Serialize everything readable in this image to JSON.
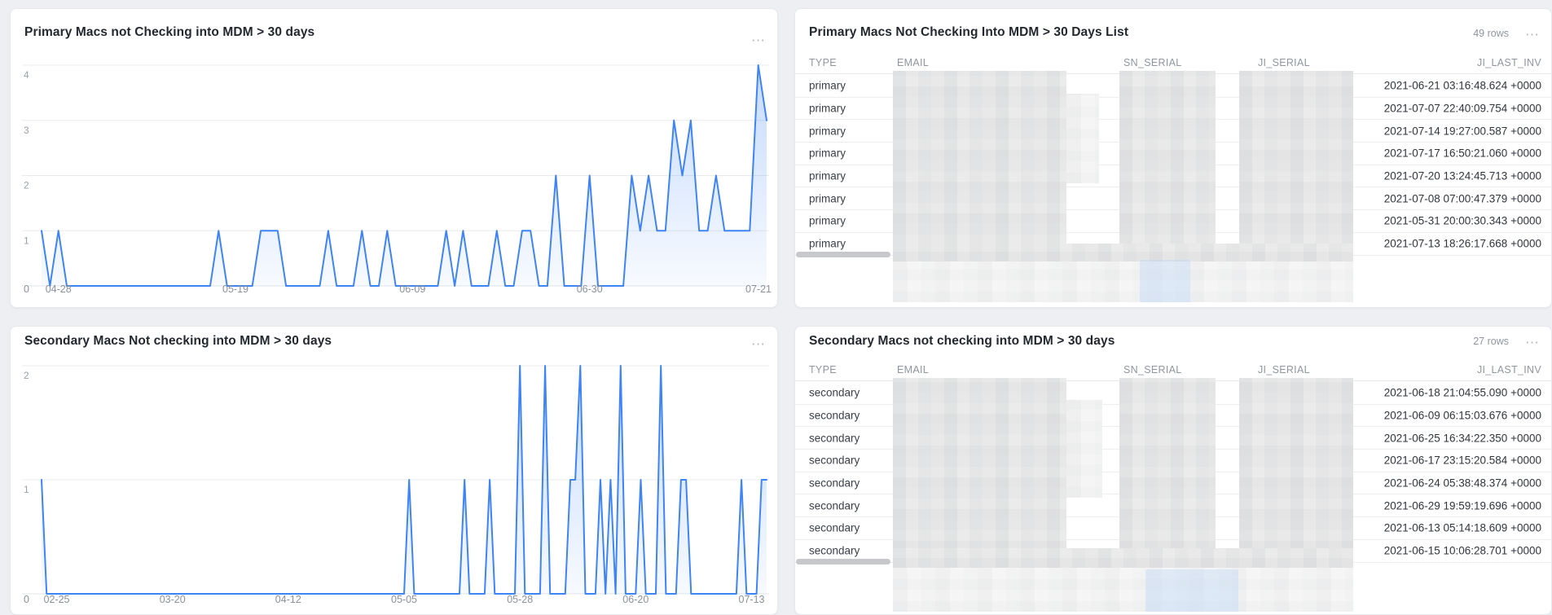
{
  "page": {
    "background": "#edeff2"
  },
  "cards": {
    "chart_primary": {
      "title": "Primary Macs not Checking into MDM > 30 days",
      "menu": "⋯"
    },
    "table_primary": {
      "title": "Primary Macs Not Checking Into MDM > 30 Days List",
      "rows_badge": "49 rows",
      "menu": "⋯"
    },
    "chart_secondary": {
      "title": "Secondary Macs Not checking into MDM > 30 days",
      "menu": "⋯"
    },
    "table_secondary": {
      "title": "Secondary Macs not checking into MDM > 30 days",
      "rows_badge": "27 rows",
      "menu": "⋯"
    }
  },
  "chart_data": [
    {
      "type": "area",
      "title": "Primary Macs not Checking into MDM > 30 days",
      "xlabel": "",
      "ylabel": "",
      "ylim": [
        0,
        4
      ],
      "yticks": [
        1,
        2,
        3,
        4
      ],
      "grid": true,
      "origin_label": "0",
      "line_color": "#3e84f4",
      "fill_color": "#3e84f4",
      "x_tick_labels": [
        {
          "label": "04-28",
          "index": 2
        },
        {
          "label": "05-19",
          "index": 23
        },
        {
          "label": "06-09",
          "index": 44
        },
        {
          "label": "06-30",
          "index": 65
        },
        {
          "label": "07-21",
          "index": 86
        }
      ],
      "values": [
        1,
        0,
        1,
        0,
        0,
        0,
        0,
        0,
        0,
        0,
        0,
        0,
        0,
        0,
        0,
        0,
        0,
        0,
        0,
        0,
        0,
        1,
        0,
        0,
        0,
        0,
        1,
        1,
        1,
        0,
        0,
        0,
        0,
        0,
        1,
        0,
        0,
        0,
        1,
        0,
        0,
        1,
        0,
        0,
        0,
        0,
        0,
        0,
        1,
        0,
        1,
        0,
        0,
        0,
        1,
        0,
        0,
        1,
        1,
        0,
        0,
        2,
        0,
        0,
        0,
        2,
        0,
        0,
        0,
        0,
        2,
        1,
        2,
        1,
        1,
        3,
        2,
        3,
        1,
        1,
        2,
        1,
        1,
        1,
        1,
        4,
        3
      ]
    },
    {
      "type": "area",
      "title": "Secondary Macs Not checking into MDM > 30 days",
      "xlabel": "",
      "ylabel": "",
      "ylim": [
        0,
        2
      ],
      "yticks": [
        1,
        2
      ],
      "grid": true,
      "origin_label": "0",
      "line_color": "#3e84f4",
      "fill_color": "#3e84f4",
      "x_tick_labels": [
        {
          "label": "02-25",
          "index": 3
        },
        {
          "label": "03-20",
          "index": 26
        },
        {
          "label": "04-12",
          "index": 49
        },
        {
          "label": "05-05",
          "index": 72
        },
        {
          "label": "05-28",
          "index": 95
        },
        {
          "label": "06-20",
          "index": 118
        },
        {
          "label": "07-13",
          "index": 141
        }
      ],
      "values": [
        1,
        0,
        0,
        0,
        0,
        0,
        0,
        0,
        0,
        0,
        0,
        0,
        0,
        0,
        0,
        0,
        0,
        0,
        0,
        0,
        0,
        0,
        0,
        0,
        0,
        0,
        0,
        0,
        0,
        0,
        0,
        0,
        0,
        0,
        0,
        0,
        0,
        0,
        0,
        0,
        0,
        0,
        0,
        0,
        0,
        0,
        0,
        0,
        0,
        0,
        0,
        0,
        0,
        0,
        0,
        0,
        0,
        0,
        0,
        0,
        0,
        0,
        0,
        0,
        0,
        0,
        0,
        0,
        0,
        0,
        0,
        0,
        0,
        1,
        0,
        0,
        0,
        0,
        0,
        0,
        0,
        0,
        0,
        0,
        1,
        0,
        0,
        0,
        0,
        1,
        0,
        0,
        0,
        0,
        0,
        2,
        0,
        0,
        0,
        0,
        2,
        0,
        0,
        0,
        0,
        1,
        1,
        2,
        0,
        0,
        0,
        1,
        0,
        1,
        0,
        2,
        0,
        0,
        0,
        1,
        0,
        0,
        0,
        2,
        0,
        0,
        0,
        1,
        1,
        0,
        0,
        0,
        0,
        0,
        0,
        0,
        0,
        0,
        0,
        1,
        0,
        0,
        0,
        1,
        1
      ]
    }
  ],
  "tables": {
    "columns": [
      "TYPE",
      "EMAIL",
      "SN_SERIAL",
      "JI_SERIAL",
      "JI_LAST_INV"
    ],
    "primary": {
      "rows": [
        {
          "type": "primary",
          "ji_last_inv": "2021-06-21 03:16:48.624 +0000"
        },
        {
          "type": "primary",
          "ji_last_inv": "2021-07-07 22:40:09.754 +0000"
        },
        {
          "type": "primary",
          "ji_last_inv": "2021-07-14 19:27:00.587 +0000"
        },
        {
          "type": "primary",
          "ji_last_inv": "2021-07-17 16:50:21.060 +0000"
        },
        {
          "type": "primary",
          "ji_last_inv": "2021-07-20 13:24:45.713 +0000"
        },
        {
          "type": "primary",
          "ji_last_inv": "2021-07-08 07:00:47.379 +0000"
        },
        {
          "type": "primary",
          "ji_last_inv": "2021-05-31 20:00:30.343 +0000"
        },
        {
          "type": "primary",
          "ji_last_inv": "2021-07-13 18:26:17.668 +0000"
        }
      ]
    },
    "secondary": {
      "rows": [
        {
          "type": "secondary",
          "ji_last_inv": "2021-06-18 21:04:55.090 +0000"
        },
        {
          "type": "secondary",
          "ji_last_inv": "2021-06-09 06:15:03.676 +0000"
        },
        {
          "type": "secondary",
          "ji_last_inv": "2021-06-25 16:34:22.350 +0000"
        },
        {
          "type": "secondary",
          "ji_last_inv": "2021-06-17 23:15:20.584 +0000"
        },
        {
          "type": "secondary",
          "ji_last_inv": "2021-06-24 05:38:48.374 +0000"
        },
        {
          "type": "secondary",
          "ji_last_inv": "2021-06-29 19:59:19.696 +0000"
        },
        {
          "type": "secondary",
          "ji_last_inv": "2021-06-13 05:14:18.609 +0000"
        },
        {
          "type": "secondary",
          "ji_last_inv": "2021-06-15 10:06:28.701 +0000"
        }
      ]
    }
  },
  "colors": {
    "accent_line": "#3e84f4",
    "grid": "#e9ebee",
    "title_text": "#232830",
    "muted_text": "#8f969f",
    "cell_text": "#30353d"
  }
}
